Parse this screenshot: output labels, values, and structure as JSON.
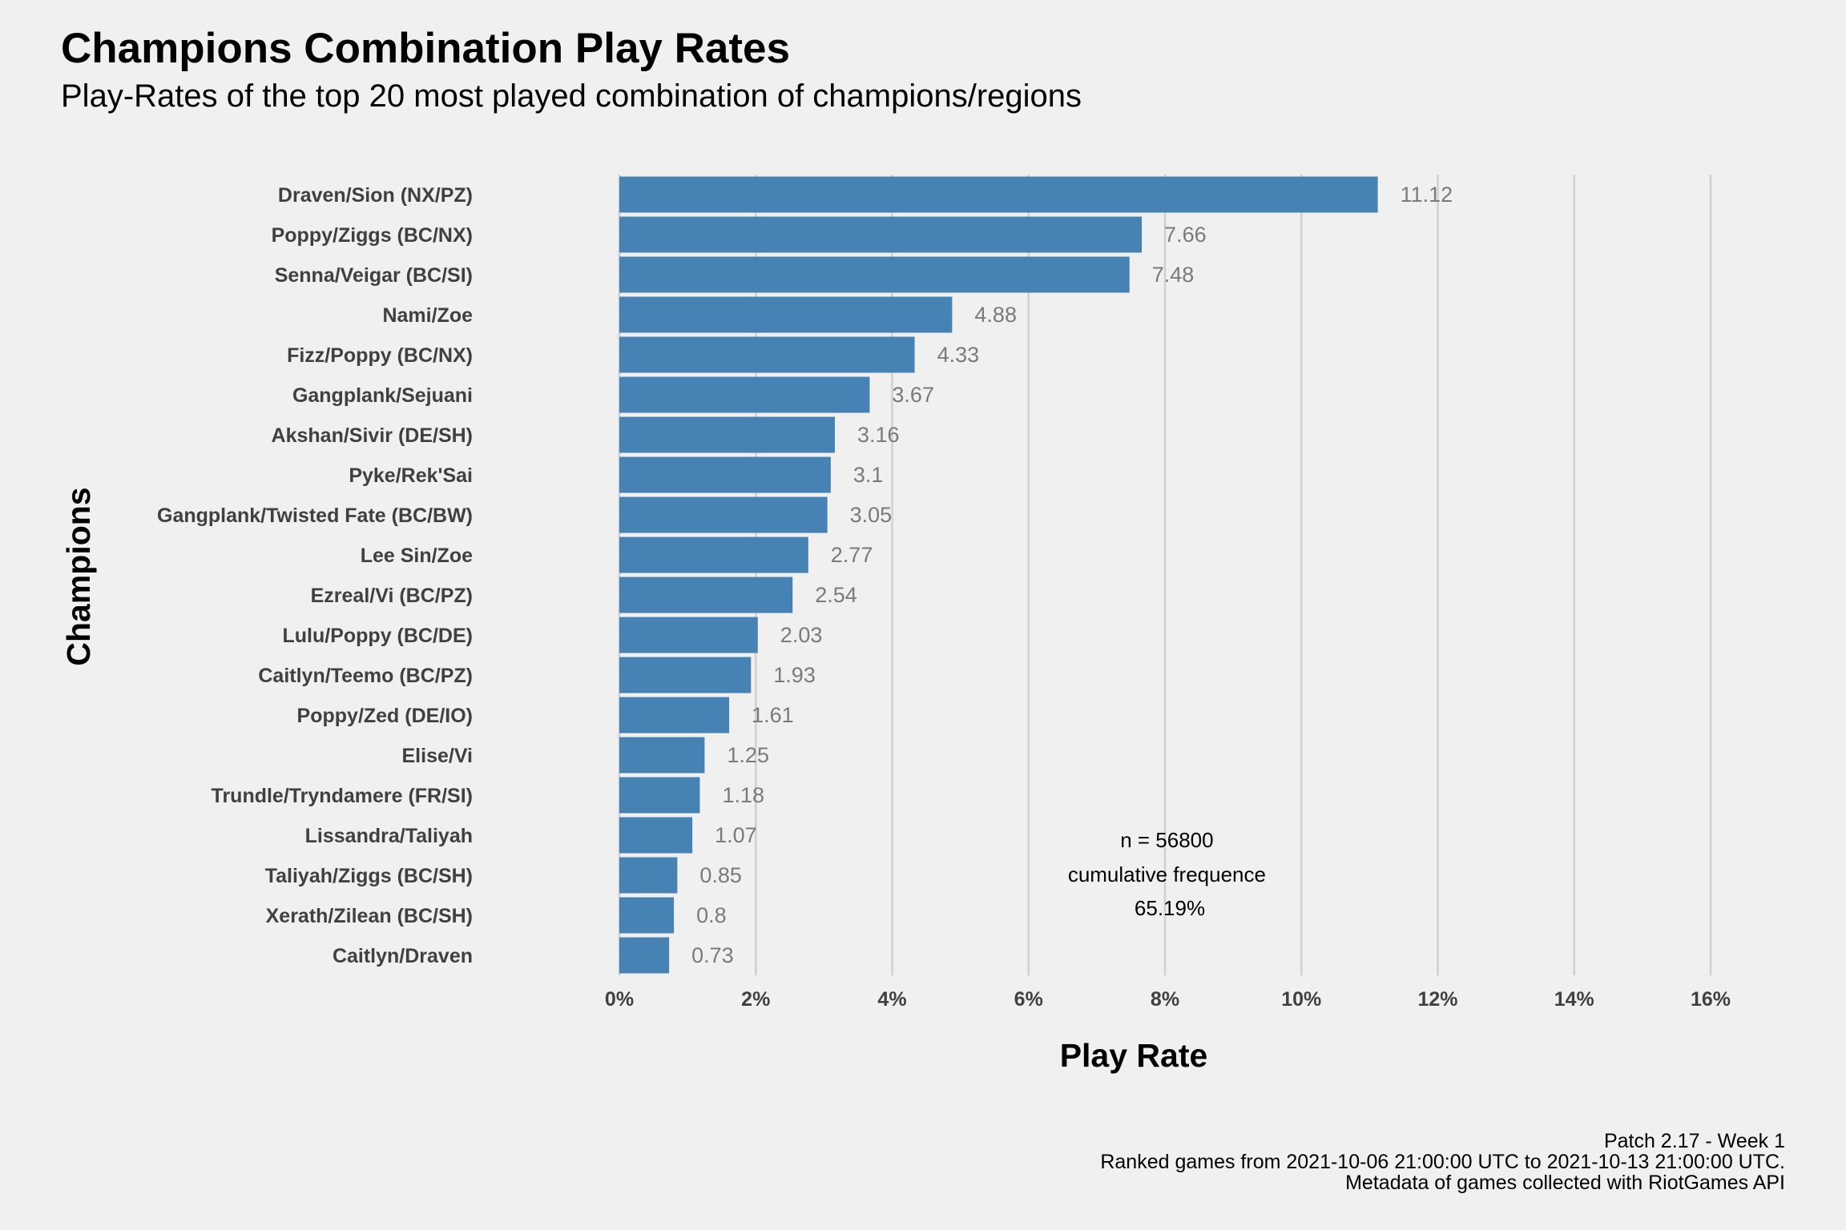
{
  "title": "Champions Combination Play Rates",
  "subtitle": "Play-Rates of the top 20 most played combination of champions/regions",
  "chart_data": {
    "type": "bar",
    "orientation": "horizontal",
    "title": "Champions Combination Play Rates",
    "subtitle": "Play-Rates of the top 20 most played combination of champions/regions",
    "xlabel": "Play Rate",
    "ylabel": "Champions",
    "xlim": [
      0,
      16
    ],
    "x_ticks": [
      0,
      2,
      4,
      6,
      8,
      10,
      12,
      14,
      16
    ],
    "x_tick_labels": [
      "0%",
      "2%",
      "4%",
      "6%",
      "8%",
      "10%",
      "12%",
      "14%",
      "16%"
    ],
    "grid": "vertical major",
    "bar_color": "#4682b4",
    "categories": [
      "Draven/Sion (NX/PZ)",
      "Poppy/Ziggs (BC/NX)",
      "Senna/Veigar (BC/SI)",
      "Nami/Zoe",
      "Fizz/Poppy (BC/NX)",
      "Gangplank/Sejuani",
      "Akshan/Sivir (DE/SH)",
      "Pyke/Rek'Sai",
      "Gangplank/Twisted Fate (BC/BW)",
      "Lee Sin/Zoe",
      "Ezreal/Vi (BC/PZ)",
      "Lulu/Poppy (BC/DE)",
      "Caitlyn/Teemo (BC/PZ)",
      "Poppy/Zed (DE/IO)",
      "Elise/Vi",
      "Trundle/Tryndamere (FR/SI)",
      "Lissandra/Taliyah",
      "Taliyah/Ziggs (BC/SH)",
      "Xerath/Zilean (BC/SH)",
      "Caitlyn/Draven"
    ],
    "values": [
      11.12,
      7.66,
      7.48,
      4.88,
      4.33,
      3.67,
      3.16,
      3.1,
      3.05,
      2.77,
      2.54,
      2.03,
      1.93,
      1.61,
      1.25,
      1.18,
      1.07,
      0.85,
      0.8,
      0.73
    ],
    "data_labels": [
      "11.12",
      "7.66",
      "7.48",
      "4.88",
      "4.33",
      "3.67",
      "3.16",
      "3.1",
      "3.05",
      "2.77",
      "2.54",
      "2.03",
      "1.93",
      "1.61",
      "1.25",
      "1.18",
      "1.07",
      "0.85",
      "0.8",
      "0.73"
    ],
    "annotation": [
      "n = 56800",
      "cumulative frequence",
      "65.19%"
    ]
  },
  "caption": [
    "Patch 2.17 - Week 1",
    "Ranked games from 2021-10-06 21:00:00 UTC to 2021-10-13 21:00:00 UTC.",
    "Metadata of games collected with RiotGames API"
  ]
}
